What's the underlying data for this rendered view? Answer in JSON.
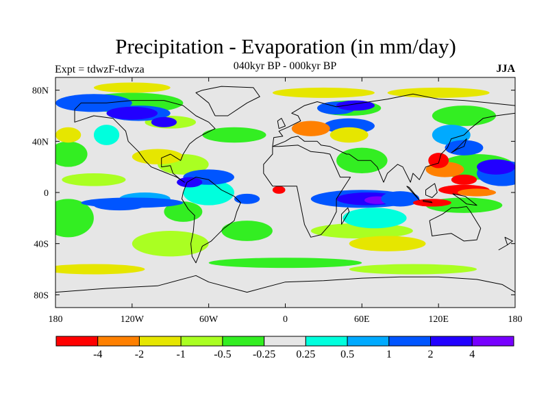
{
  "figure": {
    "title": "Precipitation - Evaporation (in mm/day)",
    "left_string": "Expt = tdwzF-tdwza",
    "center_string": "040kyr BP - 000kyr BP",
    "right_string": "JJA"
  },
  "map": {
    "projection": "cylindrical-equidistant",
    "lon_range": [
      -180,
      180
    ],
    "lat_range": [
      -90,
      90
    ],
    "land_fill_color": "#e6e6e6",
    "x_ticks": [
      {
        "lon": -180,
        "label": "180"
      },
      {
        "lon": -120,
        "label": "120W"
      },
      {
        "lon": -60,
        "label": "60W"
      },
      {
        "lon": 0,
        "label": "0"
      },
      {
        "lon": 60,
        "label": "60E"
      },
      {
        "lon": 120,
        "label": "120E"
      },
      {
        "lon": 180,
        "label": "180"
      }
    ],
    "y_ticks": [
      {
        "lat": 80,
        "label": "80N"
      },
      {
        "lat": 40,
        "label": "40N"
      },
      {
        "lat": 0,
        "label": "0"
      },
      {
        "lat": -40,
        "label": "40S"
      },
      {
        "lat": -80,
        "label": "80S"
      }
    ]
  },
  "colorbar": {
    "colors": [
      "#ff0000",
      "#ff8000",
      "#e6e600",
      "#aaff22",
      "#33ee22",
      "#e6e6e6",
      "#00ffdd",
      "#00aaff",
      "#0055ff",
      "#2200ff",
      "#7700ff"
    ],
    "labels": [
      "-4",
      "-2",
      "-1",
      "-0.5",
      "-0.25",
      "0.25",
      "0.5",
      "1",
      "2",
      "4"
    ]
  },
  "field_regions": [
    {
      "level": 4,
      "lon": -120,
      "lat": 70,
      "rx": 40,
      "ry": 8
    },
    {
      "level": 3,
      "lon": -90,
      "lat": 55,
      "rx": 20,
      "ry": 5
    },
    {
      "level": 4,
      "lon": -40,
      "lat": 45,
      "rx": 25,
      "ry": 6
    },
    {
      "level": 4,
      "lon": 50,
      "lat": 66,
      "rx": 25,
      "ry": 6
    },
    {
      "level": 4,
      "lon": 140,
      "lat": 60,
      "rx": 25,
      "ry": 8
    },
    {
      "level": 4,
      "lon": -170,
      "lat": 30,
      "rx": 15,
      "ry": 10
    },
    {
      "level": 3,
      "lon": -80,
      "lat": 22,
      "rx": 20,
      "ry": 8
    },
    {
      "level": 4,
      "lon": 60,
      "lat": 25,
      "rx": 20,
      "ry": 10
    },
    {
      "level": 3,
      "lon": -150,
      "lat": 10,
      "rx": 25,
      "ry": 5
    },
    {
      "level": 4,
      "lon": -170,
      "lat": -20,
      "rx": 20,
      "ry": 15
    },
    {
      "level": 4,
      "lon": -80,
      "lat": -15,
      "rx": 15,
      "ry": 8
    },
    {
      "level": 3,
      "lon": -90,
      "lat": -40,
      "rx": 30,
      "ry": 10
    },
    {
      "level": 4,
      "lon": -30,
      "lat": -30,
      "rx": 20,
      "ry": 8
    },
    {
      "level": 3,
      "lon": 60,
      "lat": -30,
      "rx": 40,
      "ry": 6
    },
    {
      "level": 4,
      "lon": 0,
      "lat": -55,
      "rx": 60,
      "ry": 4
    },
    {
      "level": 3,
      "lon": 100,
      "lat": -60,
      "rx": 50,
      "ry": 4
    },
    {
      "level": 4,
      "lon": 150,
      "lat": 20,
      "rx": 30,
      "ry": 10
    },
    {
      "level": 4,
      "lon": 140,
      "lat": -10,
      "rx": 30,
      "ry": 6
    },
    {
      "level": 6,
      "lon": -140,
      "lat": 45,
      "rx": 10,
      "ry": 8
    },
    {
      "level": 7,
      "lon": 130,
      "lat": 45,
      "rx": 15,
      "ry": 8
    },
    {
      "level": 6,
      "lon": -60,
      "lat": 0,
      "rx": 20,
      "ry": 10
    },
    {
      "level": 6,
      "lon": 70,
      "lat": -20,
      "rx": 25,
      "ry": 8
    },
    {
      "level": 7,
      "lon": -110,
      "lat": -5,
      "rx": 20,
      "ry": 5
    },
    {
      "level": 8,
      "lon": -130,
      "lat": -10,
      "rx": 20,
      "ry": 4
    },
    {
      "level": 8,
      "lon": -150,
      "lat": 70,
      "rx": 30,
      "ry": 7
    },
    {
      "level": 8,
      "lon": -115,
      "lat": 62,
      "rx": 25,
      "ry": 6
    },
    {
      "level": 9,
      "lon": -120,
      "lat": 62,
      "rx": 20,
      "ry": 5
    },
    {
      "level": 9,
      "lon": -95,
      "lat": 55,
      "rx": 10,
      "ry": 4
    },
    {
      "level": 8,
      "lon": 40,
      "lat": 66,
      "rx": 15,
      "ry": 5
    },
    {
      "level": 9,
      "lon": 55,
      "lat": 68,
      "rx": 15,
      "ry": 4
    },
    {
      "level": 8,
      "lon": 50,
      "lat": 52,
      "rx": 20,
      "ry": 6
    },
    {
      "level": 8,
      "lon": 60,
      "lat": -5,
      "rx": 40,
      "ry": 7
    },
    {
      "level": 9,
      "lon": 65,
      "lat": -5,
      "rx": 25,
      "ry": 5
    },
    {
      "level": 10,
      "lon": 72,
      "lat": -6,
      "rx": 10,
      "ry": 3
    },
    {
      "level": 8,
      "lon": -60,
      "lat": 12,
      "rx": 20,
      "ry": 6
    },
    {
      "level": 9,
      "lon": -75,
      "lat": 8,
      "rx": 10,
      "ry": 4
    },
    {
      "level": 8,
      "lon": -120,
      "lat": -8,
      "rx": 40,
      "ry": 4
    },
    {
      "level": 8,
      "lon": 170,
      "lat": 15,
      "rx": 20,
      "ry": 10
    },
    {
      "level": 9,
      "lon": 165,
      "lat": 20,
      "rx": 15,
      "ry": 6
    },
    {
      "level": 8,
      "lon": 140,
      "lat": 35,
      "rx": 15,
      "ry": 6
    },
    {
      "level": 8,
      "lon": -30,
      "lat": -5,
      "rx": 10,
      "ry": 4
    },
    {
      "level": 8,
      "lon": 90,
      "lat": -5,
      "rx": 15,
      "ry": 6
    },
    {
      "level": 2,
      "lon": -120,
      "lat": 82,
      "rx": 30,
      "ry": 4
    },
    {
      "level": 2,
      "lon": 30,
      "lat": 78,
      "rx": 40,
      "ry": 4
    },
    {
      "level": 2,
      "lon": 120,
      "lat": 78,
      "rx": 40,
      "ry": 4
    },
    {
      "level": 2,
      "lon": -170,
      "lat": 45,
      "rx": 10,
      "ry": 6
    },
    {
      "level": 2,
      "lon": 50,
      "lat": 45,
      "rx": 15,
      "ry": 6
    },
    {
      "level": 1,
      "lon": 20,
      "lat": 50,
      "rx": 15,
      "ry": 6
    },
    {
      "level": 2,
      "lon": -100,
      "lat": 28,
      "rx": 20,
      "ry": 6
    },
    {
      "level": 2,
      "lon": 80,
      "lat": -40,
      "rx": 30,
      "ry": 6
    },
    {
      "level": 2,
      "lon": -150,
      "lat": -60,
      "rx": 40,
      "ry": 4
    },
    {
      "level": 0,
      "lon": -5,
      "lat": 2,
      "rx": 5,
      "ry": 3
    },
    {
      "level": 1,
      "lon": 125,
      "lat": 18,
      "rx": 15,
      "ry": 6
    },
    {
      "level": 0,
      "lon": 120,
      "lat": 25,
      "rx": 8,
      "ry": 6
    },
    {
      "level": 0,
      "lon": 140,
      "lat": 2,
      "rx": 20,
      "ry": 4
    },
    {
      "level": 1,
      "lon": 150,
      "lat": 0,
      "rx": 15,
      "ry": 3
    },
    {
      "level": 0,
      "lon": 115,
      "lat": -8,
      "rx": 15,
      "ry": 3
    },
    {
      "level": 0,
      "lon": 140,
      "lat": 10,
      "rx": 10,
      "ry": 4
    }
  ],
  "coastlines": [
    [
      [
        -165,
        65
      ],
      [
        -160,
        70
      ],
      [
        -140,
        70
      ],
      [
        -120,
        72
      ],
      [
        -95,
        72
      ],
      [
        -80,
        68
      ],
      [
        -70,
        60
      ],
      [
        -60,
        55
      ],
      [
        -55,
        50
      ],
      [
        -65,
        45
      ],
      [
        -70,
        42
      ],
      [
        -75,
        38
      ],
      [
        -80,
        30
      ],
      [
        -82,
        25
      ],
      [
        -90,
        30
      ],
      [
        -97,
        27
      ],
      [
        -97,
        20
      ],
      [
        -90,
        21
      ],
      [
        -88,
        15
      ],
      [
        -82,
        10
      ],
      [
        -79,
        8
      ],
      [
        -85,
        12
      ],
      [
        -95,
        16
      ],
      [
        -105,
        20
      ],
      [
        -110,
        25
      ],
      [
        -115,
        32
      ],
      [
        -123,
        40
      ],
      [
        -125,
        48
      ],
      [
        -135,
        58
      ],
      [
        -150,
        60
      ],
      [
        -165,
        55
      ],
      [
        -165,
        65
      ]
    ],
    [
      [
        -55,
        60
      ],
      [
        -45,
        60
      ],
      [
        -30,
        70
      ],
      [
        -20,
        75
      ],
      [
        -25,
        82
      ],
      [
        -50,
        83
      ],
      [
        -65,
        80
      ],
      [
        -70,
        78
      ],
      [
        -60,
        70
      ],
      [
        -55,
        60
      ]
    ],
    [
      [
        -77,
        8
      ],
      [
        -70,
        12
      ],
      [
        -60,
        10
      ],
      [
        -50,
        2
      ],
      [
        -40,
        -3
      ],
      [
        -35,
        -8
      ],
      [
        -38,
        -15
      ],
      [
        -40,
        -22
      ],
      [
        -48,
        -28
      ],
      [
        -55,
        -35
      ],
      [
        -58,
        -38
      ],
      [
        -65,
        -42
      ],
      [
        -68,
        -50
      ],
      [
        -70,
        -55
      ],
      [
        -73,
        -50
      ],
      [
        -74,
        -40
      ],
      [
        -72,
        -30
      ],
      [
        -71,
        -18
      ],
      [
        -76,
        -13
      ],
      [
        -81,
        -5
      ],
      [
        -80,
        0
      ],
      [
        -77,
        8
      ]
    ],
    [
      [
        -10,
        36
      ],
      [
        -5,
        36
      ],
      [
        10,
        37
      ],
      [
        20,
        32
      ],
      [
        30,
        31
      ],
      [
        35,
        30
      ],
      [
        43,
        12
      ],
      [
        51,
        12
      ],
      [
        40,
        -5
      ],
      [
        40,
        -15
      ],
      [
        35,
        -25
      ],
      [
        28,
        -33
      ],
      [
        20,
        -35
      ],
      [
        15,
        -25
      ],
      [
        12,
        -10
      ],
      [
        9,
        5
      ],
      [
        0,
        5
      ],
      [
        -10,
        5
      ],
      [
        -17,
        15
      ],
      [
        -17,
        22
      ],
      [
        -10,
        30
      ],
      [
        -10,
        36
      ]
    ],
    [
      [
        -10,
        36
      ],
      [
        -9,
        43
      ],
      [
        -2,
        44
      ],
      [
        -5,
        48
      ],
      [
        2,
        51
      ],
      [
        8,
        54
      ],
      [
        12,
        56
      ],
      [
        10,
        60
      ],
      [
        5,
        62
      ],
      [
        15,
        68
      ],
      [
        25,
        71
      ],
      [
        40,
        67
      ],
      [
        60,
        70
      ],
      [
        80,
        73
      ],
      [
        100,
        77
      ],
      [
        120,
        73
      ],
      [
        140,
        72
      ],
      [
        160,
        70
      ],
      [
        180,
        68
      ],
      [
        180,
        62
      ],
      [
        165,
        60
      ],
      [
        155,
        58
      ],
      [
        145,
        50
      ],
      [
        140,
        45
      ],
      [
        130,
        42
      ],
      [
        127,
        35
      ],
      [
        122,
        30
      ],
      [
        120,
        23
      ],
      [
        110,
        20
      ],
      [
        105,
        10
      ],
      [
        100,
        15
      ],
      [
        98,
        8
      ],
      [
        92,
        20
      ],
      [
        88,
        22
      ],
      [
        80,
        15
      ],
      [
        77,
        8
      ],
      [
        72,
        20
      ],
      [
        67,
        25
      ],
      [
        57,
        25
      ],
      [
        50,
        30
      ],
      [
        48,
        30
      ],
      [
        35,
        36
      ],
      [
        28,
        37
      ],
      [
        25,
        40
      ],
      [
        20,
        40
      ],
      [
        15,
        40
      ],
      [
        10,
        44
      ],
      [
        5,
        43
      ],
      [
        0,
        40
      ],
      [
        -10,
        36
      ]
    ],
    [
      [
        113,
        -22
      ],
      [
        115,
        -34
      ],
      [
        130,
        -32
      ],
      [
        135,
        -35
      ],
      [
        140,
        -38
      ],
      [
        150,
        -37
      ],
      [
        153,
        -28
      ],
      [
        145,
        -15
      ],
      [
        142,
        -11
      ],
      [
        135,
        -12
      ],
      [
        130,
        -12
      ],
      [
        123,
        -17
      ],
      [
        113,
        -22
      ]
    ],
    [
      [
        -180,
        -78
      ],
      [
        -140,
        -75
      ],
      [
        -100,
        -73
      ],
      [
        -70,
        -65
      ],
      [
        -60,
        -70
      ],
      [
        -30,
        -78
      ],
      [
        0,
        -70
      ],
      [
        30,
        -69
      ],
      [
        60,
        -67
      ],
      [
        90,
        -66
      ],
      [
        120,
        -66
      ],
      [
        150,
        -68
      ],
      [
        170,
        -72
      ],
      [
        180,
        -78
      ]
    ],
    [
      [
        95,
        5
      ],
      [
        105,
        -6
      ],
      [
        102,
        -2
      ],
      [
        97,
        4
      ],
      [
        95,
        5
      ]
    ],
    [
      [
        108,
        -7
      ],
      [
        115,
        -8
      ],
      [
        114,
        -7
      ],
      [
        108,
        -6
      ],
      [
        108,
        -7
      ]
    ],
    [
      [
        110,
        2
      ],
      [
        117,
        7
      ],
      [
        119,
        0
      ],
      [
        115,
        -4
      ],
      [
        110,
        -2
      ],
      [
        110,
        2
      ]
    ],
    [
      [
        131,
        -1
      ],
      [
        141,
        -3
      ],
      [
        150,
        -10
      ],
      [
        142,
        -9
      ],
      [
        137,
        -5
      ],
      [
        131,
        -1
      ]
    ],
    [
      [
        130,
        31
      ],
      [
        135,
        34
      ],
      [
        140,
        36
      ],
      [
        142,
        42
      ],
      [
        140,
        40
      ],
      [
        135,
        35
      ],
      [
        130,
        31
      ]
    ],
    [
      [
        -5,
        50
      ],
      [
        0,
        52
      ],
      [
        -3,
        58
      ],
      [
        -6,
        56
      ],
      [
        -5,
        50
      ]
    ],
    [
      [
        167,
        -45
      ],
      [
        174,
        -41
      ],
      [
        178,
        -38
      ],
      [
        172,
        -35
      ],
      [
        174,
        -41
      ],
      [
        167,
        -45
      ]
    ],
    [
      [
        44,
        -25
      ],
      [
        50,
        -15
      ],
      [
        49,
        -12
      ],
      [
        44,
        -17
      ],
      [
        44,
        -25
      ]
    ]
  ]
}
